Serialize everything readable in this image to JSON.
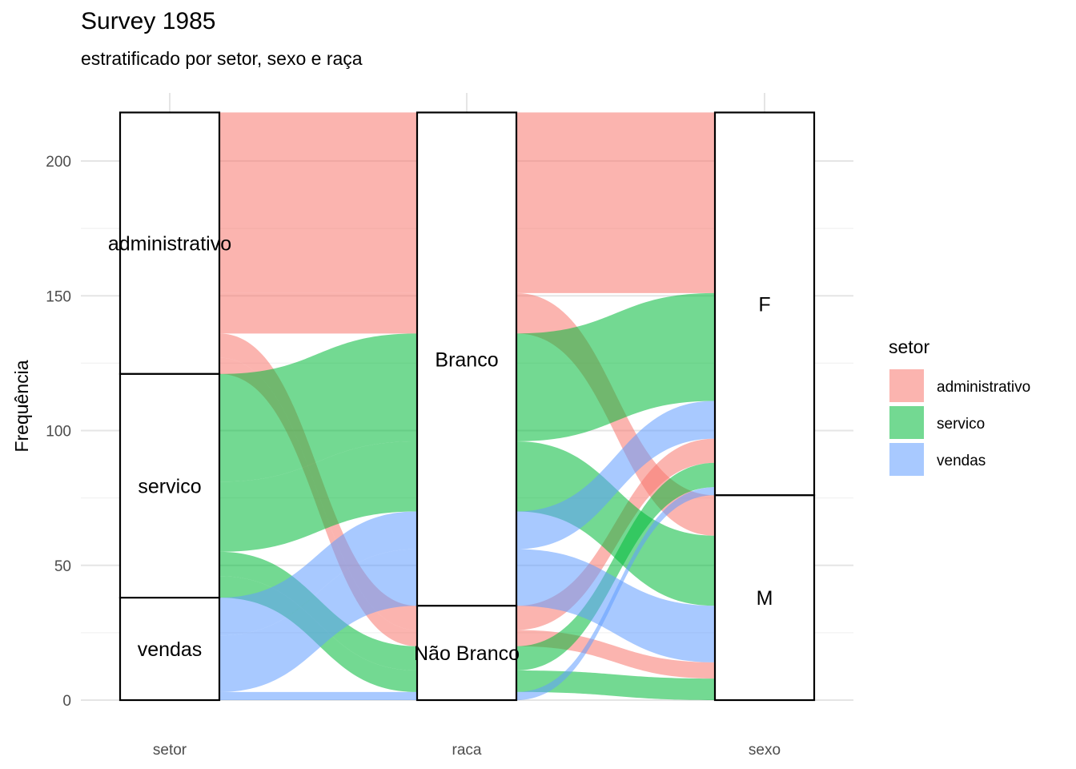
{
  "chart_data": {
    "type": "alluvial",
    "title": "Survey 1985",
    "subtitle": "estratificado por setor, sexo e raça",
    "xlabel": "",
    "ylabel": "Frequência",
    "axes": [
      "setor",
      "raca",
      "sexo"
    ],
    "ylim": [
      0,
      220
    ],
    "yticks": [
      0,
      50,
      100,
      150,
      200
    ],
    "grid": true,
    "legend": {
      "title": "setor",
      "position": "right",
      "entries": [
        {
          "name": "administrativo",
          "color": "#F8766D"
        },
        {
          "name": "servico",
          "color": "#00BA38"
        },
        {
          "name": "vendas",
          "color": "#619CFF"
        }
      ]
    },
    "strata": {
      "setor": [
        {
          "label": "administrativo",
          "value": 97
        },
        {
          "label": "servico",
          "value": 83
        },
        {
          "label": "vendas",
          "value": 38
        }
      ],
      "raca": [
        {
          "label": "Branco",
          "value": 183
        },
        {
          "label": "Não Branco",
          "value": 35
        }
      ],
      "sexo": [
        {
          "label": "F",
          "value": 142
        },
        {
          "label": "M",
          "value": 76
        }
      ]
    },
    "flows": [
      {
        "setor": "administrativo",
        "raca": "Branco",
        "sexo": "F",
        "value": 67
      },
      {
        "setor": "administrativo",
        "raca": "Branco",
        "sexo": "M",
        "value": 15
      },
      {
        "setor": "administrativo",
        "raca": "Não Branco",
        "sexo": "F",
        "value": 9
      },
      {
        "setor": "administrativo",
        "raca": "Não Branco",
        "sexo": "M",
        "value": 6
      },
      {
        "setor": "servico",
        "raca": "Branco",
        "sexo": "F",
        "value": 40
      },
      {
        "setor": "servico",
        "raca": "Branco",
        "sexo": "M",
        "value": 26
      },
      {
        "setor": "servico",
        "raca": "Não Branco",
        "sexo": "F",
        "value": 9
      },
      {
        "setor": "servico",
        "raca": "Não Branco",
        "sexo": "M",
        "value": 8
      },
      {
        "setor": "vendas",
        "raca": "Branco",
        "sexo": "F",
        "value": 14
      },
      {
        "setor": "vendas",
        "raca": "Branco",
        "sexo": "M",
        "value": 21
      },
      {
        "setor": "vendas",
        "raca": "Não Branco",
        "sexo": "F",
        "value": 3
      },
      {
        "setor": "vendas",
        "raca": "Não Branco",
        "sexo": "M",
        "value": 0
      }
    ]
  }
}
